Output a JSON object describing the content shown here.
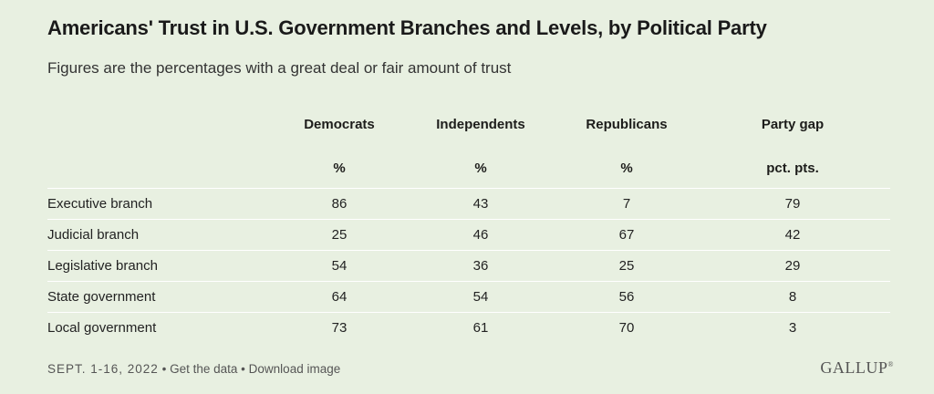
{
  "header": {
    "title": "Americans' Trust in U.S. Government Branches and Levels, by Political Party",
    "subtitle": "Figures are the percentages with a great deal or fair amount of trust"
  },
  "chart_data": {
    "type": "table",
    "title": "Americans' Trust in U.S. Government Branches and Levels, by Political Party",
    "subtitle": "Figures are the percentages with a great deal or fair amount of trust",
    "columns": [
      {
        "label": "Democrats",
        "unit": "%"
      },
      {
        "label": "Independents",
        "unit": "%"
      },
      {
        "label": "Republicans",
        "unit": "%"
      },
      {
        "label": "Party gap",
        "unit": "pct. pts."
      }
    ],
    "rows": [
      {
        "label": "Executive branch",
        "values": [
          86,
          43,
          7,
          79
        ]
      },
      {
        "label": "Judicial branch",
        "values": [
          25,
          46,
          67,
          42
        ]
      },
      {
        "label": "Legislative branch",
        "values": [
          54,
          36,
          25,
          29
        ]
      },
      {
        "label": "State government",
        "values": [
          64,
          54,
          56,
          8
        ]
      },
      {
        "label": "Local government",
        "values": [
          73,
          61,
          70,
          3
        ]
      }
    ]
  },
  "footer": {
    "date": "SEPT. 1-16, 2022",
    "separator": "•",
    "get_data": "Get the data",
    "download": "Download image",
    "logo": "GALLUP",
    "logo_mark": "®"
  },
  "colors": {
    "background": "#e8f0e1",
    "text": "#1d1d1b",
    "rule": "#ffffff"
  }
}
